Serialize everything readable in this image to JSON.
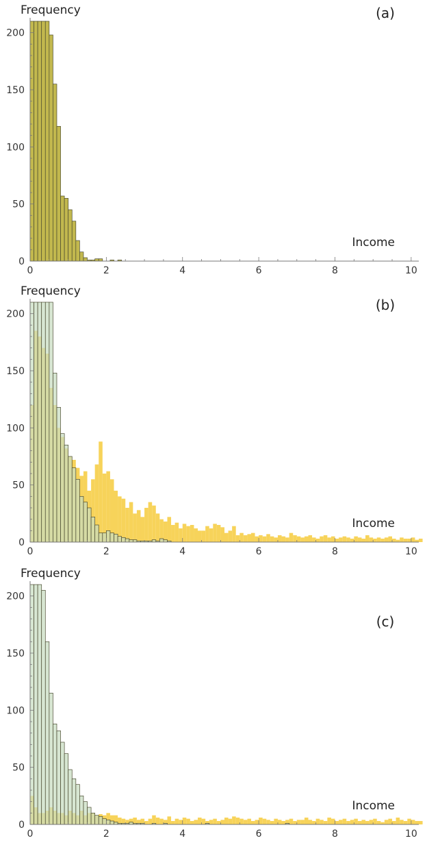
{
  "colors": {
    "gold": "#f7d35a",
    "olive": "#c2b84e",
    "green": "#c8dcc0",
    "edge": "#4a4a30",
    "axis": "#777777"
  },
  "chart_data": [
    {
      "type": "bar",
      "title": "(a)",
      "xlabel": "Income",
      "ylabel": "Frequency",
      "xlim": [
        0,
        10.2
      ],
      "ylim": [
        0,
        210
      ],
      "x_ticks": [
        "0",
        "2",
        "4",
        "6",
        "8",
        "10"
      ],
      "y_ticks": [
        "0",
        "50",
        "100",
        "150",
        "200"
      ],
      "bin_width": 0.1,
      "bin_start": 0,
      "series": [
        {
          "name": "olive",
          "style": "olive",
          "values": [
            210,
            210,
            210,
            210,
            210,
            198,
            155,
            118,
            57,
            55,
            45,
            35,
            18,
            8,
            3,
            1,
            1,
            2,
            2,
            0,
            0,
            1,
            0,
            1,
            0,
            0,
            0,
            0,
            0,
            0
          ]
        }
      ]
    },
    {
      "type": "bar",
      "title": "(b)",
      "xlabel": "Income",
      "ylabel": "Frequency",
      "xlim": [
        0,
        10.2
      ],
      "ylim": [
        0,
        210
      ],
      "x_ticks": [
        "0",
        "2",
        "4",
        "6",
        "8",
        "10"
      ],
      "y_ticks": [
        "0",
        "50",
        "100",
        "150",
        "200"
      ],
      "bin_width": 0.1,
      "bin_start": 0,
      "series": [
        {
          "name": "gold",
          "style": "gold",
          "values": [
            120,
            185,
            180,
            170,
            165,
            135,
            120,
            100,
            92,
            82,
            75,
            72,
            65,
            58,
            62,
            45,
            55,
            68,
            88,
            60,
            62,
            55,
            45,
            40,
            38,
            30,
            35,
            25,
            28,
            22,
            30,
            35,
            32,
            25,
            20,
            18,
            22,
            15,
            17,
            12,
            16,
            14,
            15,
            12,
            10,
            10,
            14,
            12,
            16,
            15,
            13,
            8,
            10,
            14,
            6,
            8,
            6,
            7,
            8,
            5,
            6,
            5,
            7,
            5,
            4,
            6,
            5,
            4,
            8,
            6,
            5,
            4,
            5,
            6,
            4,
            3,
            5,
            6,
            4,
            5,
            3,
            4,
            5,
            4,
            3,
            5,
            4,
            3,
            6,
            4,
            3,
            4,
            3,
            4,
            5,
            3,
            2,
            4,
            3,
            3,
            4,
            2,
            3
          ]
        },
        {
          "name": "green",
          "style": "green",
          "values": [
            210,
            210,
            210,
            210,
            210,
            210,
            148,
            118,
            95,
            85,
            75,
            65,
            55,
            40,
            35,
            30,
            22,
            15,
            8,
            8,
            10,
            8,
            7,
            5,
            4,
            3,
            2,
            2,
            1,
            1,
            1,
            1,
            2,
            1,
            3,
            2,
            1,
            0,
            0,
            0,
            0,
            0,
            0,
            0,
            0,
            0,
            0,
            0,
            0,
            0,
            0,
            0,
            0,
            0,
            0,
            0,
            0,
            0,
            0,
            0,
            0,
            0,
            0,
            0,
            0,
            0,
            0,
            0,
            0,
            0,
            0,
            0,
            0,
            0,
            0,
            0,
            0,
            0,
            0,
            0,
            0,
            0,
            0,
            0,
            0,
            0,
            0,
            0,
            0,
            0,
            0,
            0,
            0,
            0,
            0,
            0,
            0,
            0,
            0,
            0,
            0,
            0,
            0
          ]
        }
      ]
    },
    {
      "type": "bar",
      "title": "(c)",
      "xlabel": "Income",
      "ylabel": "Frequency",
      "xlim": [
        0,
        10.2
      ],
      "ylim": [
        0,
        210
      ],
      "x_ticks": [
        "0",
        "2",
        "4",
        "6",
        "8",
        "10"
      ],
      "y_ticks": [
        "0",
        "50",
        "100",
        "150",
        "200"
      ],
      "bin_width": 0.1,
      "bin_start": 0,
      "series": [
        {
          "name": "gold",
          "style": "gold",
          "values": [
            25,
            15,
            10,
            10,
            12,
            15,
            12,
            10,
            10,
            8,
            12,
            10,
            8,
            12,
            8,
            10,
            10,
            8,
            9,
            8,
            10,
            8,
            8,
            6,
            5,
            4,
            5,
            6,
            4,
            5,
            3,
            5,
            8,
            6,
            5,
            4,
            7,
            3,
            5,
            4,
            6,
            5,
            3,
            4,
            6,
            5,
            3,
            4,
            5,
            3,
            4,
            6,
            5,
            7,
            6,
            5,
            4,
            5,
            3,
            4,
            6,
            5,
            4,
            3,
            5,
            4,
            3,
            4,
            5,
            3,
            4,
            4,
            6,
            4,
            3,
            5,
            4,
            3,
            6,
            5,
            3,
            4,
            5,
            3,
            4,
            5,
            3,
            4,
            3,
            4,
            5,
            3,
            2,
            4,
            5,
            3,
            6,
            4,
            3,
            5,
            4,
            3,
            3
          ]
        },
        {
          "name": "green",
          "style": "green",
          "values": [
            210,
            210,
            210,
            205,
            160,
            115,
            88,
            82,
            72,
            62,
            48,
            40,
            35,
            25,
            20,
            15,
            10,
            8,
            7,
            5,
            4,
            3,
            2,
            1,
            1,
            1,
            2,
            1,
            1,
            1,
            0,
            0,
            1,
            0,
            0,
            1,
            0,
            0,
            0,
            0,
            0,
            0,
            0,
            0,
            0,
            0,
            1,
            0,
            0,
            0,
            0,
            0,
            0,
            0,
            0,
            0,
            0,
            0,
            0,
            0,
            0,
            0,
            0,
            0,
            0,
            0,
            0,
            1,
            0,
            0,
            0,
            0,
            0,
            0,
            0,
            0,
            0,
            0,
            0,
            0,
            0,
            0,
            0,
            0,
            0,
            0,
            0,
            0,
            0,
            0,
            0,
            0,
            0,
            0,
            0,
            0,
            0,
            0,
            0,
            0,
            0,
            0,
            0
          ]
        }
      ]
    }
  ]
}
